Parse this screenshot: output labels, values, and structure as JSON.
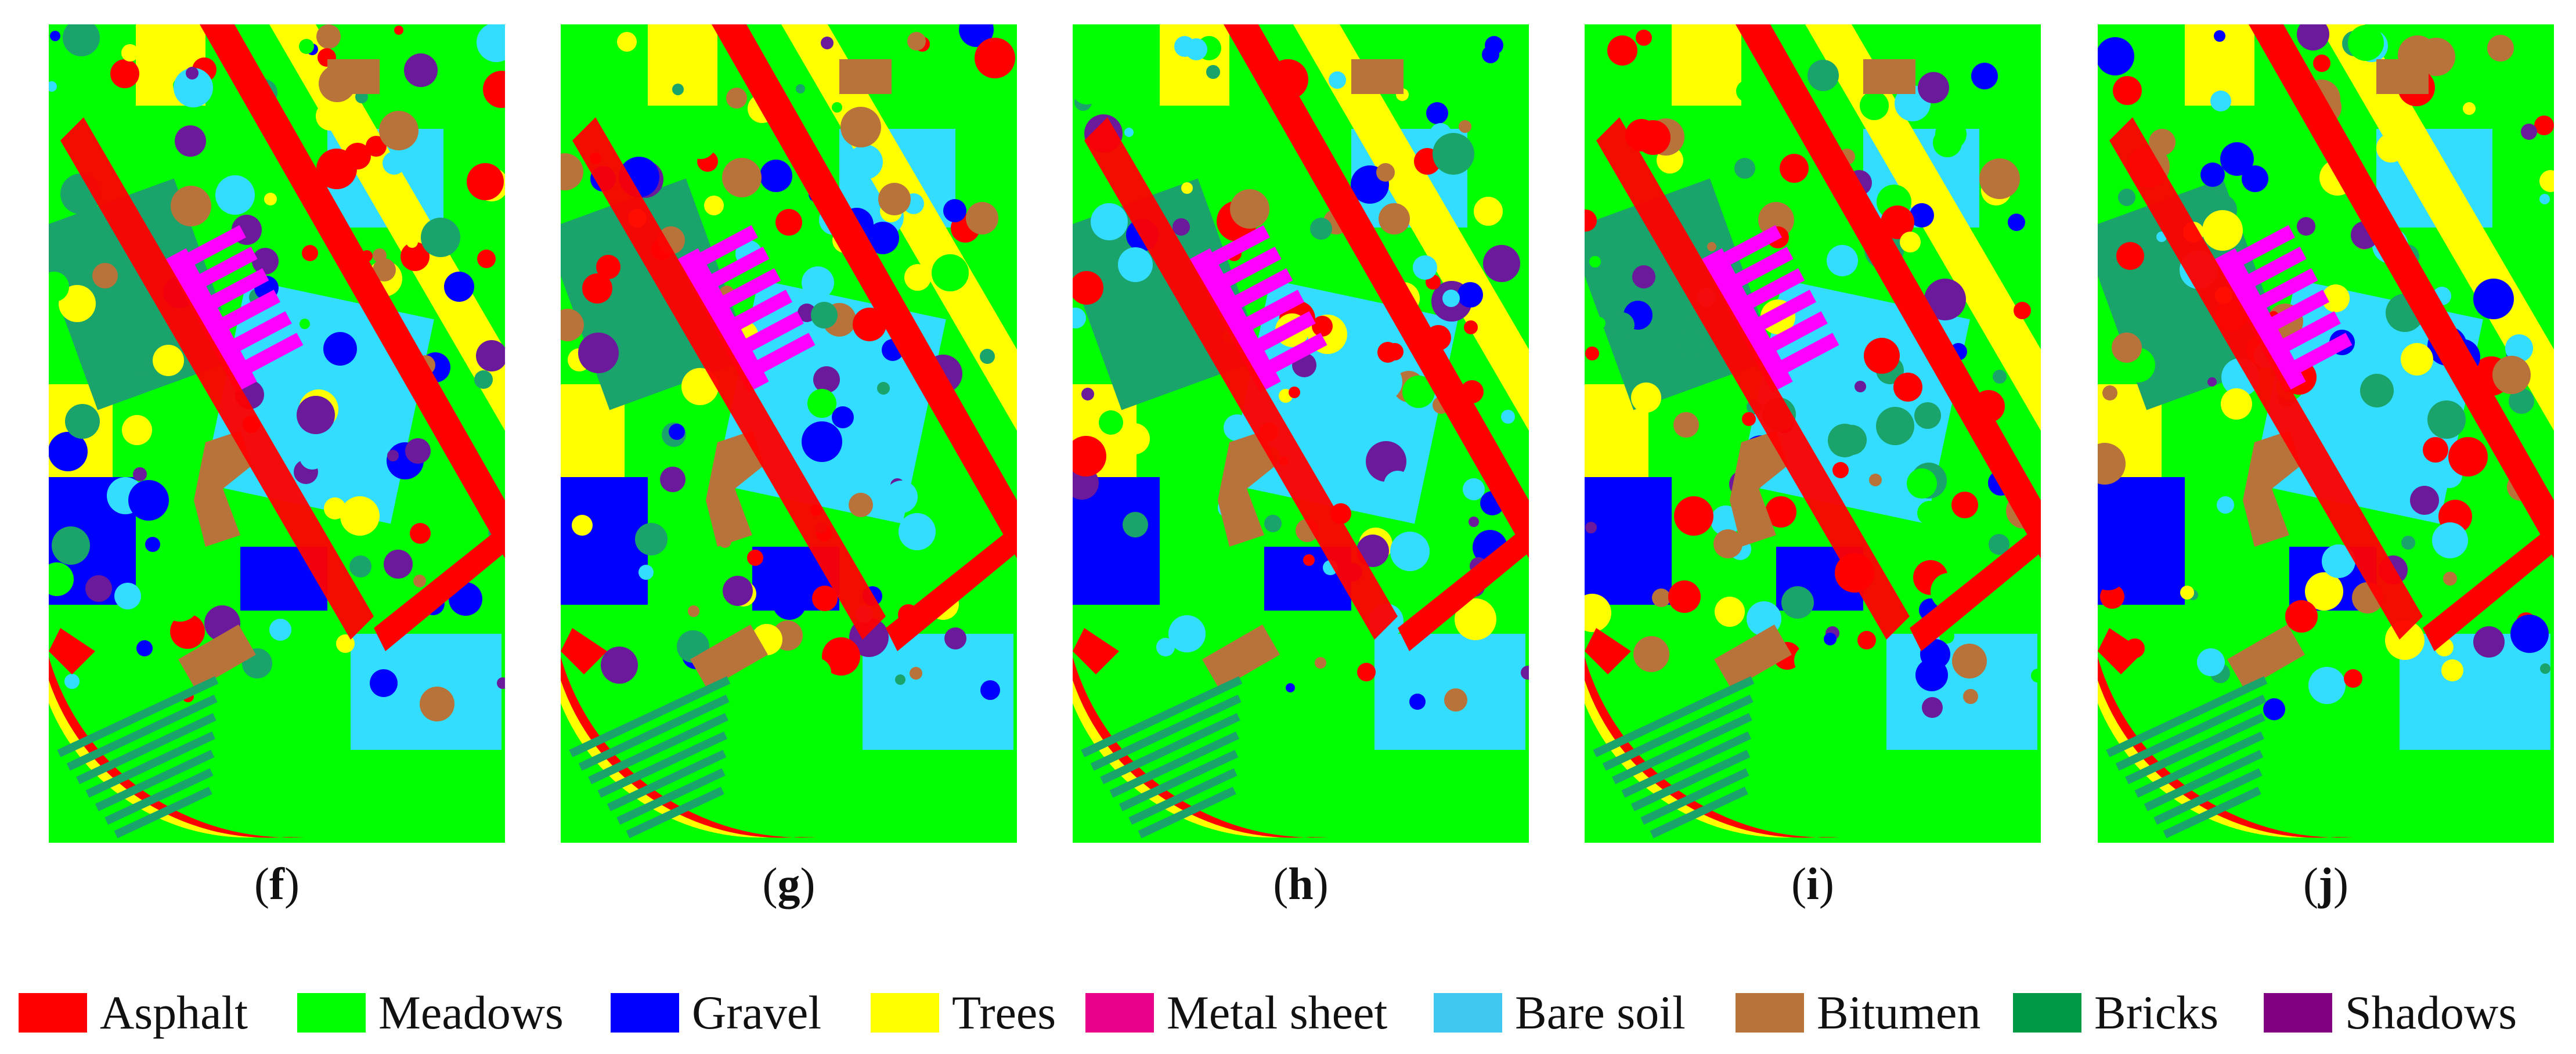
{
  "panels": [
    {
      "id": "f",
      "label": "f"
    },
    {
      "id": "g",
      "label": "g"
    },
    {
      "id": "h",
      "label": "h"
    },
    {
      "id": "i",
      "label": "i"
    },
    {
      "id": "j",
      "label": "j"
    }
  ],
  "legend": [
    {
      "label": "Asphalt",
      "color": "#ff0000"
    },
    {
      "label": "Meadows",
      "color": "#00ff00"
    },
    {
      "label": "Gravel",
      "color": "#0000ff"
    },
    {
      "label": "Trees",
      "color": "#ffff00"
    },
    {
      "label": "Metal sheet",
      "color": "#ff00ff"
    },
    {
      "label": "Bare soil",
      "color": "#00ffff"
    },
    {
      "label": "Bitumen",
      "color": "#b8733a"
    },
    {
      "label": "Bricks",
      "color": "#009a44"
    },
    {
      "label": "Shadows",
      "color": "#800080"
    }
  ],
  "colors": {
    "asphalt": "#ff0000",
    "meadows": "#00ff00",
    "gravel": "#0000ff",
    "trees": "#ffff00",
    "metal": "#ff00ff",
    "baresoil": "#33ddff",
    "bitumen": "#b8733a",
    "bricks": "#1aa36b",
    "shadows": "#6a1a9a"
  }
}
